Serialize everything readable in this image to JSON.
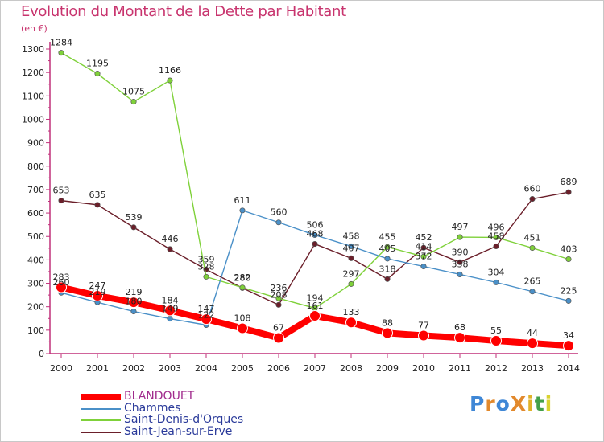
{
  "title": "Evolution du Montant de la Dette par Habitant",
  "unit_label": "(en €)",
  "logo": {
    "text": "ProXiti",
    "colors": [
      "#3f87d6",
      "#e2892c",
      "#3f87d6",
      "#e2892c",
      "#e0b22a",
      "#43a04a",
      "#d9d22f"
    ]
  },
  "chart_data": {
    "type": "line",
    "title": "Evolution du Montant de la Dette par Habitant",
    "ylabel": "(en €)",
    "xlabel": "",
    "x": [
      "2000",
      "2001",
      "2002",
      "2003",
      "2004",
      "2005",
      "2006",
      "2007",
      "2008",
      "2009",
      "2010",
      "2011",
      "2012",
      "2013",
      "2014"
    ],
    "ylim": [
      0,
      1300
    ],
    "yticks": [
      0,
      100,
      200,
      300,
      400,
      500,
      600,
      700,
      800,
      900,
      1000,
      1100,
      1200,
      1300
    ],
    "grid": false,
    "legend_position": "bottom-left",
    "series": [
      {
        "name": "BLANDOUET",
        "color": "#ff0000",
        "values": [
          283,
          247,
          219,
          184,
          147,
          108,
          67,
          161,
          133,
          88,
          77,
          68,
          55,
          44,
          34
        ]
      },
      {
        "name": "Chammes",
        "color": "#4a90c8",
        "values": [
          260,
          219,
          180,
          149,
          122,
          611,
          560,
          506,
          458,
          405,
          372,
          338,
          304,
          265,
          225
        ]
      },
      {
        "name": "Saint-Denis-d'Orques",
        "color": "#7fd13a",
        "values": [
          1284,
          1195,
          1075,
          1166,
          328,
          282,
          236,
          194,
          297,
          455,
          414,
          497,
          496,
          451,
          403
        ]
      },
      {
        "name": "Saint-Jean-sur-Erve",
        "color": "#6b1f2a",
        "values": [
          653,
          635,
          539,
          446,
          359,
          280,
          208,
          468,
          407,
          318,
          452,
          390,
          458,
          660,
          689
        ]
      }
    ]
  }
}
